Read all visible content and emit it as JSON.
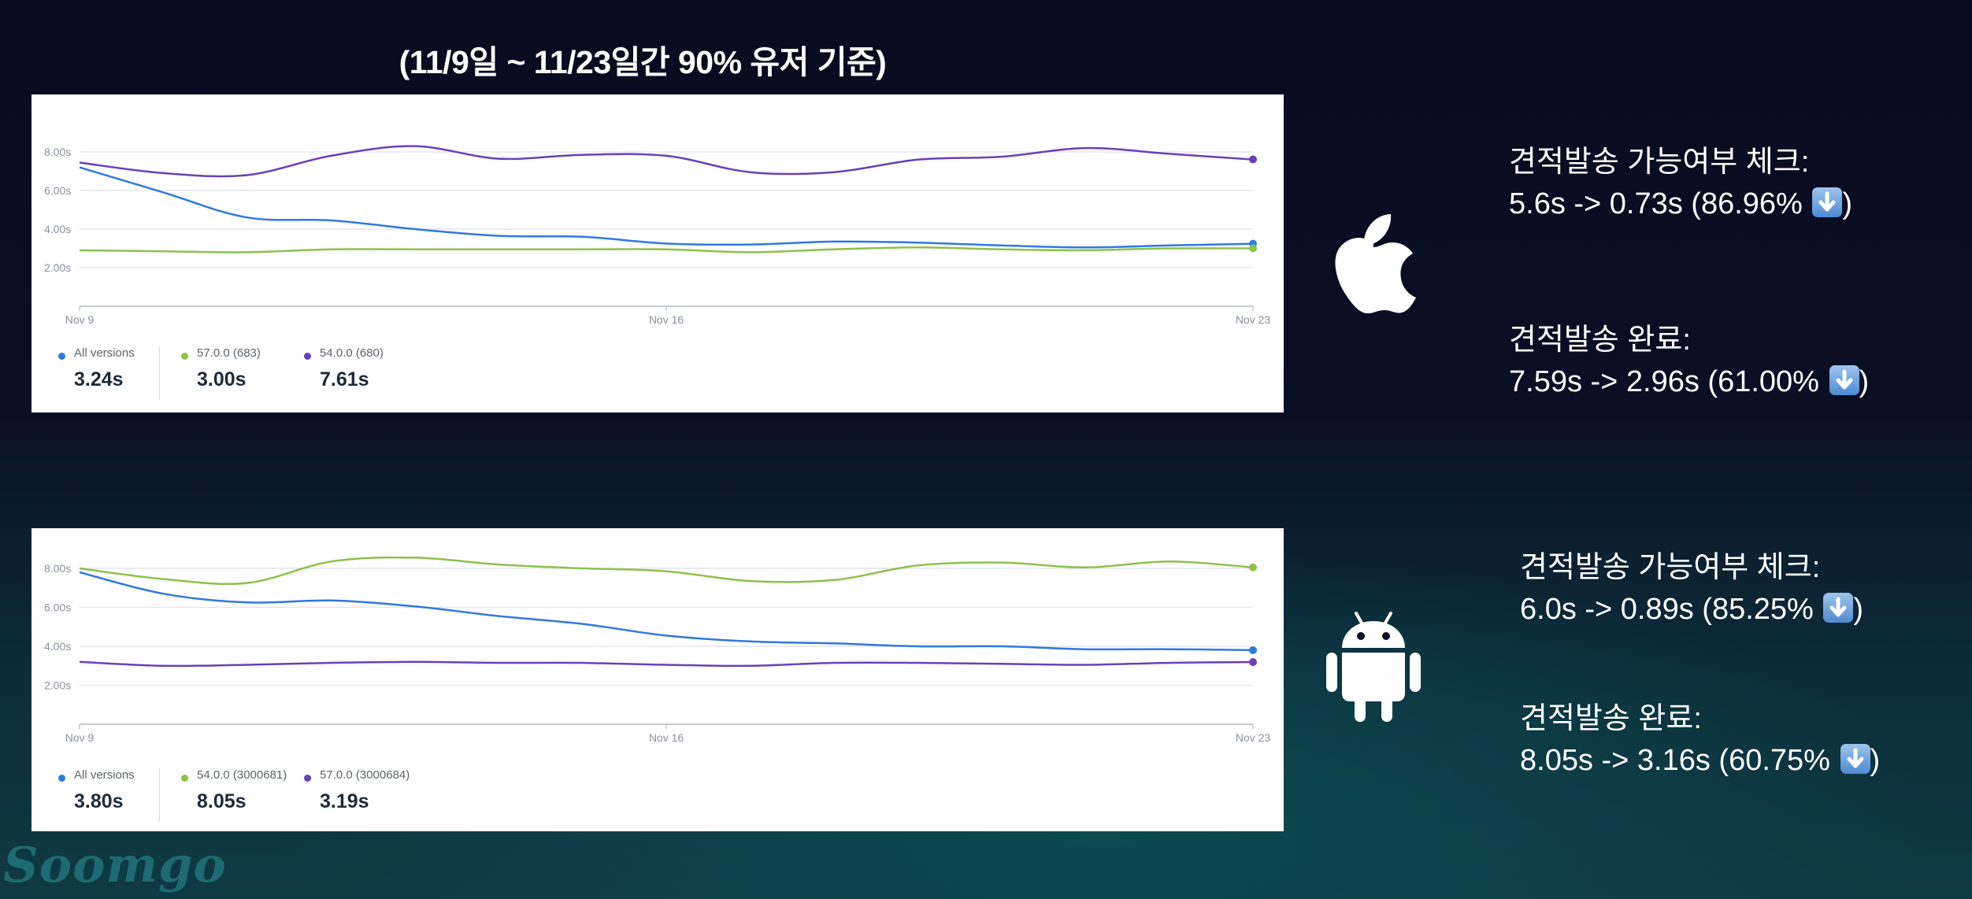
{
  "heading": "(11/9일 ~ 11/23일간 90% 유저 기준)",
  "colors": {
    "blue": "#2f79e2",
    "green": "#8bc34a",
    "purple": "#6a41b8"
  },
  "chart_data": [
    {
      "type": "line",
      "platform_icon": "apple-icon",
      "x": [
        "Nov 9",
        "Nov 10",
        "Nov 11",
        "Nov 12",
        "Nov 13",
        "Nov 14",
        "Nov 15",
        "Nov 16",
        "Nov 17",
        "Nov 18",
        "Nov 19",
        "Nov 20",
        "Nov 21",
        "Nov 22",
        "Nov 23"
      ],
      "x_tick_labels": [
        "Nov 9",
        "Nov 16",
        "Nov 23"
      ],
      "y_tick_labels": [
        "8.00s",
        "6.00s",
        "4.00s",
        "2.00s"
      ],
      "y_ticks": [
        8,
        6,
        4,
        2
      ],
      "ylim": [
        0,
        9
      ],
      "series": [
        {
          "name": "All versions",
          "color": "#2f79e2",
          "values": [
            7.2,
            5.9,
            4.6,
            4.45,
            4.0,
            3.65,
            3.6,
            3.25,
            3.2,
            3.35,
            3.3,
            3.15,
            3.05,
            3.15,
            3.24
          ]
        },
        {
          "name": "57.0.0 (683)",
          "color": "#8bc34a",
          "values": [
            2.9,
            2.85,
            2.8,
            2.95,
            2.95,
            2.95,
            2.95,
            2.95,
            2.8,
            2.95,
            3.05,
            2.95,
            2.9,
            3.0,
            3.0
          ]
        },
        {
          "name": "54.0.0 (680)",
          "color": "#6a41b8",
          "values": [
            7.45,
            6.9,
            6.8,
            7.8,
            8.3,
            7.65,
            7.85,
            7.8,
            6.95,
            6.95,
            7.6,
            7.75,
            8.2,
            7.9,
            7.61
          ]
        }
      ],
      "legend": [
        {
          "name": "All versions",
          "value": "3.24s",
          "color": "#2f79e2"
        },
        {
          "name": "57.0.0 (683)",
          "value": "3.00s",
          "color": "#8bc34a"
        },
        {
          "name": "54.0.0 (680)",
          "value": "7.61s",
          "color": "#6a41b8"
        }
      ]
    },
    {
      "type": "line",
      "platform_icon": "android-icon",
      "x": [
        "Nov 9",
        "Nov 10",
        "Nov 11",
        "Nov 12",
        "Nov 13",
        "Nov 14",
        "Nov 15",
        "Nov 16",
        "Nov 17",
        "Nov 18",
        "Nov 19",
        "Nov 20",
        "Nov 21",
        "Nov 22",
        "Nov 23"
      ],
      "x_tick_labels": [
        "Nov 9",
        "Nov 16",
        "Nov 23"
      ],
      "y_tick_labels": [
        "8.00s",
        "6.00s",
        "4.00s",
        "2.00s"
      ],
      "y_ticks": [
        8,
        6,
        4,
        2
      ],
      "ylim": [
        0,
        9
      ],
      "series": [
        {
          "name": "All versions",
          "color": "#2f79e2",
          "values": [
            7.8,
            6.7,
            6.25,
            6.35,
            6.05,
            5.55,
            5.15,
            4.55,
            4.25,
            4.15,
            4.0,
            4.0,
            3.85,
            3.85,
            3.8
          ]
        },
        {
          "name": "54.0.0 (3000681)",
          "color": "#8bc34a",
          "values": [
            8.0,
            7.45,
            7.25,
            8.35,
            8.55,
            8.2,
            8.0,
            7.85,
            7.35,
            7.4,
            8.15,
            8.3,
            8.05,
            8.35,
            8.05
          ]
        },
        {
          "name": "57.0.0 (3000684)",
          "color": "#6a41b8",
          "values": [
            3.2,
            3.0,
            3.05,
            3.15,
            3.2,
            3.15,
            3.15,
            3.05,
            3.0,
            3.15,
            3.15,
            3.1,
            3.05,
            3.15,
            3.19
          ]
        }
      ],
      "legend": [
        {
          "name": "All versions",
          "value": "3.80s",
          "color": "#2f79e2"
        },
        {
          "name": "54.0.0 (3000681)",
          "value": "8.05s",
          "color": "#8bc34a"
        },
        {
          "name": "57.0.0 (3000684)",
          "value": "3.19s",
          "color": "#6a41b8"
        }
      ]
    }
  ],
  "ios_stats": [
    {
      "label": "견적발송 가능여부 체크:",
      "detail": "5.6s -> 0.73s (86.96%"
    },
    {
      "label": "견적발송 완료:",
      "detail": "7.59s -> 2.96s (61.00%"
    }
  ],
  "android_stats": [
    {
      "label": "견적발송 가능여부 체크:",
      "detail": "6.0s -> 0.89s (85.25%"
    },
    {
      "label": "견적발송 완료:",
      "detail": "8.05s -> 3.16s (60.75%"
    }
  ],
  "stat_suffix": ")",
  "stat_arrow_icon": "down-arrow-icon",
  "brand": "Soomgo"
}
